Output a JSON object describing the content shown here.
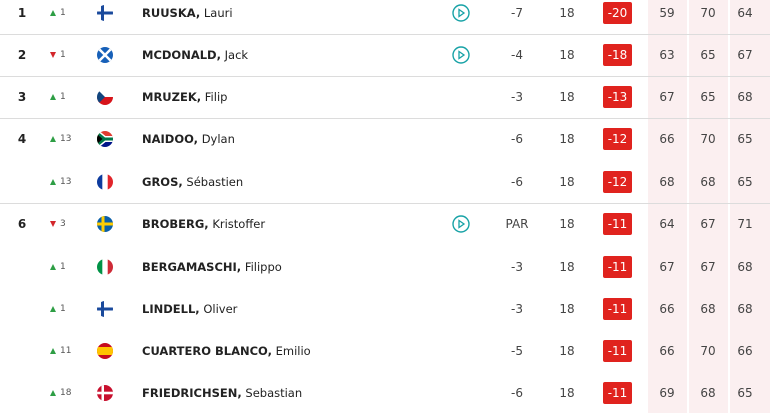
{
  "rows": [
    {
      "pos": "1",
      "move": "1",
      "last": "RUUSKA,",
      "first": "Lauri",
      "today": "-7",
      "thru": "18",
      "total": "-20",
      "rounds": [
        "59",
        "70",
        "64"
      ]
    },
    {
      "pos": "2",
      "move": "1",
      "last": "MCDONALD,",
      "first": "Jack",
      "today": "-4",
      "thru": "18",
      "total": "-18",
      "rounds": [
        "63",
        "65",
        "67"
      ]
    },
    {
      "pos": "3",
      "move": "1",
      "last": "MRUZEK,",
      "first": "Filip",
      "today": "-3",
      "thru": "18",
      "total": "-13",
      "rounds": [
        "67",
        "65",
        "68"
      ]
    },
    {
      "pos": "4",
      "move": "13",
      "last": "NAIDOO,",
      "first": "Dylan",
      "today": "-6",
      "thru": "18",
      "total": "-12",
      "rounds": [
        "66",
        "70",
        "65"
      ]
    },
    {
      "move": "13",
      "last": "GROS,",
      "first": "Sébastien",
      "today": "-6",
      "thru": "18",
      "total": "-12",
      "rounds": [
        "68",
        "68",
        "65"
      ]
    },
    {
      "pos": "6",
      "move": "3",
      "last": "BROBERG,",
      "first": "Kristoffer",
      "today": "PAR",
      "thru": "18",
      "total": "-11",
      "rounds": [
        "64",
        "67",
        "71"
      ]
    },
    {
      "move": "1",
      "last": "BERGAMASCHI,",
      "first": "Filippo",
      "today": "-3",
      "thru": "18",
      "total": "-11",
      "rounds": [
        "67",
        "67",
        "68"
      ]
    },
    {
      "move": "1",
      "last": "LINDELL,",
      "first": "Oliver",
      "today": "-3",
      "thru": "18",
      "total": "-11",
      "rounds": [
        "66",
        "68",
        "68"
      ]
    },
    {
      "move": "11",
      "last": "CUARTERO BLANCO,",
      "first": "Emilio",
      "today": "-5",
      "thru": "18",
      "total": "-11",
      "rounds": [
        "66",
        "70",
        "66"
      ]
    },
    {
      "move": "18",
      "last": "FRIEDRICHSEN,",
      "first": "Sebastian",
      "today": "-6",
      "thru": "18",
      "total": "-11",
      "rounds": [
        "69",
        "68",
        "65"
      ]
    }
  ]
}
